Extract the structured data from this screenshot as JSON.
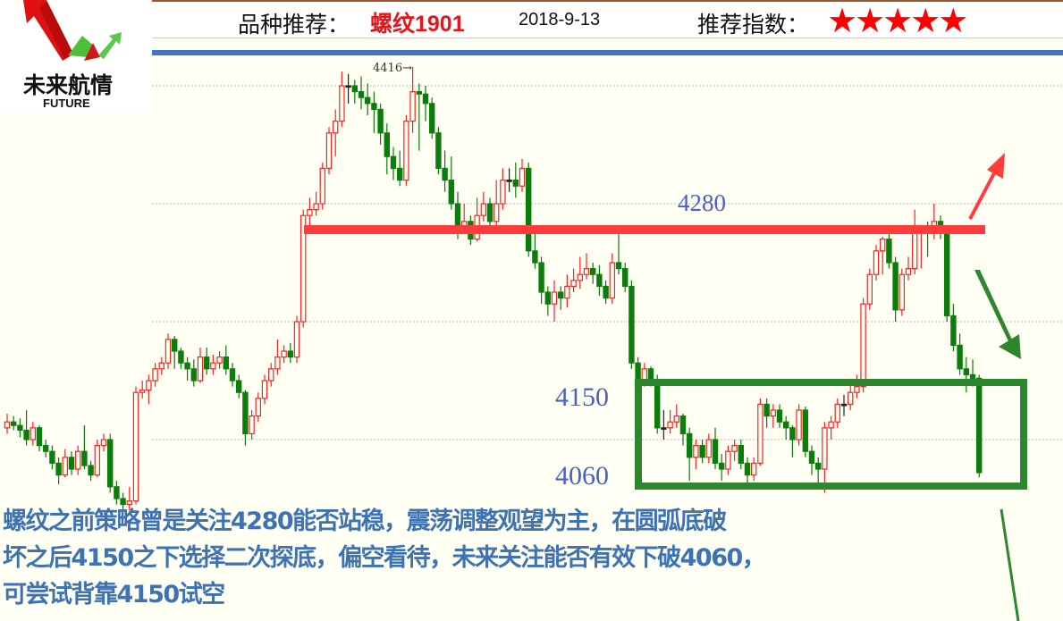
{
  "header": {
    "variety_label": "品种推荐：",
    "variety": "螺纹1901",
    "date": "2018-9-13",
    "rating_label": "推荐指数：",
    "rating_stars": 5,
    "stars_text": "★★★★★"
  },
  "logo": {
    "cn": "未来航情",
    "en": "FUTURE"
  },
  "colors": {
    "up": "#ff2020",
    "down": "#0a7d0a",
    "resistance": "#ff3b3b",
    "box": "#2e872e",
    "annotation": "#4a5fc8",
    "comment": "#3d72b4",
    "rule": "#4472c4"
  },
  "chart_data": {
    "type": "candlestick",
    "ylim": [
      4030,
      4430
    ],
    "grid": true,
    "gridlines": [
      4100,
      4200,
      4300,
      4400
    ],
    "high_marker": "4416→",
    "levels": [
      {
        "label": "4280",
        "value": 4280,
        "style": "red-line"
      },
      {
        "label": "4150",
        "value": 4150,
        "style": "box-top"
      },
      {
        "label": "4060",
        "value": 4060,
        "style": "box-bottom"
      }
    ],
    "candles": [
      [
        4110,
        4122,
        4105,
        4115
      ],
      [
        4115,
        4120,
        4108,
        4112
      ],
      [
        4112,
        4118,
        4102,
        4108
      ],
      [
        4108,
        4125,
        4095,
        4100
      ],
      [
        4100,
        4115,
        4095,
        4110
      ],
      [
        4110,
        4112,
        4090,
        4095
      ],
      [
        4095,
        4100,
        4085,
        4090
      ],
      [
        4090,
        4095,
        4075,
        4080
      ],
      [
        4080,
        4085,
        4062,
        4070
      ],
      [
        4070,
        4092,
        4068,
        4085
      ],
      [
        4085,
        4090,
        4070,
        4075
      ],
      [
        4075,
        4095,
        4070,
        4090
      ],
      [
        4090,
        4112,
        4075,
        4078
      ],
      [
        4078,
        4082,
        4065,
        4070
      ],
      [
        4070,
        4100,
        4068,
        4095
      ],
      [
        4095,
        4105,
        4090,
        4100
      ],
      [
        4100,
        4105,
        4055,
        4060
      ],
      [
        4060,
        4065,
        4045,
        4050
      ],
      [
        4050,
        4055,
        4035,
        4045
      ],
      [
        4045,
        4060,
        4040,
        4048
      ],
      [
        4048,
        4145,
        4045,
        4140
      ],
      [
        4140,
        4150,
        4135,
        4142
      ],
      [
        4142,
        4155,
        4130,
        4150
      ],
      [
        4150,
        4165,
        4145,
        4160
      ],
      [
        4160,
        4170,
        4155,
        4165
      ],
      [
        4165,
        4190,
        4160,
        4185
      ],
      [
        4185,
        4188,
        4160,
        4175
      ],
      [
        4175,
        4178,
        4160,
        4165
      ],
      [
        4165,
        4170,
        4150,
        4160
      ],
      [
        4160,
        4168,
        4145,
        4150
      ],
      [
        4150,
        4178,
        4148,
        4170
      ],
      [
        4170,
        4178,
        4155,
        4160
      ],
      [
        4160,
        4172,
        4155,
        4165
      ],
      [
        4165,
        4175,
        4160,
        4170
      ],
      [
        4170,
        4180,
        4155,
        4160
      ],
      [
        4160,
        4165,
        4145,
        4150
      ],
      [
        4150,
        4155,
        4135,
        4140
      ],
      [
        4140,
        4142,
        4095,
        4105
      ],
      [
        4105,
        4125,
        4100,
        4120
      ],
      [
        4120,
        4140,
        4115,
        4135
      ],
      [
        4135,
        4155,
        4130,
        4150
      ],
      [
        4150,
        4165,
        4145,
        4160
      ],
      [
        4160,
        4185,
        4155,
        4170
      ],
      [
        4170,
        4180,
        4165,
        4175
      ],
      [
        4175,
        4182,
        4165,
        4170
      ],
      [
        4170,
        4205,
        4165,
        4200
      ],
      [
        4200,
        4295,
        4195,
        4290
      ],
      [
        4290,
        4305,
        4280,
        4295
      ],
      [
        4295,
        4310,
        4290,
        4300
      ],
      [
        4300,
        4335,
        4295,
        4330
      ],
      [
        4330,
        4365,
        4325,
        4360
      ],
      [
        4360,
        4380,
        4340,
        4370
      ],
      [
        4370,
        4412,
        4365,
        4400
      ],
      [
        4400,
        4410,
        4385,
        4400
      ],
      [
        4400,
        4405,
        4385,
        4395
      ],
      [
        4395,
        4408,
        4380,
        4390
      ],
      [
        4390,
        4402,
        4375,
        4385
      ],
      [
        4385,
        4395,
        4360,
        4380
      ],
      [
        4380,
        4385,
        4350,
        4360
      ],
      [
        4360,
        4368,
        4325,
        4340
      ],
      [
        4340,
        4348,
        4320,
        4330
      ],
      [
        4330,
        4345,
        4315,
        4320
      ],
      [
        4320,
        4375,
        4315,
        4370
      ],
      [
        4370,
        4416,
        4360,
        4395
      ],
      [
        4395,
        4402,
        4345,
        4393
      ],
      [
        4393,
        4400,
        4370,
        4385
      ],
      [
        4385,
        4390,
        4355,
        4360
      ],
      [
        4360,
        4365,
        4325,
        4330
      ],
      [
        4330,
        4345,
        4310,
        4320
      ],
      [
        4320,
        4340,
        4295,
        4300
      ],
      [
        4300,
        4310,
        4270,
        4280
      ],
      [
        4280,
        4300,
        4275,
        4285
      ],
      [
        4285,
        4290,
        4265,
        4270
      ],
      [
        4270,
        4305,
        4268,
        4290
      ],
      [
        4290,
        4310,
        4285,
        4300
      ],
      [
        4300,
        4305,
        4275,
        4285
      ],
      [
        4285,
        4320,
        4280,
        4300
      ],
      [
        4300,
        4330,
        4295,
        4320
      ],
      [
        4320,
        4330,
        4310,
        4320
      ],
      [
        4320,
        4335,
        4305,
        4315
      ],
      [
        4315,
        4338,
        4310,
        4330
      ],
      [
        4330,
        4335,
        4255,
        4260
      ],
      [
        4260,
        4275,
        4245,
        4250
      ],
      [
        4250,
        4255,
        4215,
        4225
      ],
      [
        4225,
        4230,
        4205,
        4215
      ],
      [
        4215,
        4235,
        4200,
        4225
      ],
      [
        4225,
        4230,
        4210,
        4220
      ],
      [
        4220,
        4240,
        4212,
        4230
      ],
      [
        4230,
        4245,
        4225,
        4235
      ],
      [
        4235,
        4255,
        4228,
        4240
      ],
      [
        4240,
        4258,
        4236,
        4245
      ],
      [
        4245,
        4250,
        4232,
        4240
      ],
      [
        4240,
        4248,
        4222,
        4230
      ],
      [
        4230,
        4235,
        4215,
        4220
      ],
      [
        4220,
        4258,
        4215,
        4250
      ],
      [
        4250,
        4280,
        4240,
        4245
      ],
      [
        4245,
        4250,
        4225,
        4230
      ],
      [
        4230,
        4235,
        4160,
        4165
      ],
      [
        4165,
        4170,
        4145,
        4150
      ],
      [
        4150,
        4165,
        4145,
        4160
      ],
      [
        4160,
        4162,
        4145,
        4150
      ],
      [
        4150,
        4155,
        4105,
        4110
      ],
      [
        4110,
        4125,
        4100,
        4110
      ],
      [
        4110,
        4125,
        4105,
        4115
      ],
      [
        4115,
        4130,
        4110,
        4120
      ],
      [
        4120,
        4122,
        4095,
        4105
      ],
      [
        4105,
        4110,
        4065,
        4085
      ],
      [
        4085,
        4100,
        4075,
        4095
      ],
      [
        4095,
        4100,
        4080,
        4085
      ],
      [
        4085,
        4105,
        4080,
        4100
      ],
      [
        4100,
        4110,
        4075,
        4080
      ],
      [
        4080,
        4088,
        4065,
        4075
      ],
      [
        4075,
        4095,
        4070,
        4090
      ],
      [
        4090,
        4100,
        4082,
        4095
      ],
      [
        4095,
        4100,
        4075,
        4080
      ],
      [
        4080,
        4085,
        4060,
        4070
      ],
      [
        4070,
        4085,
        4065,
        4080
      ],
      [
        4080,
        4135,
        4078,
        4130
      ],
      [
        4130,
        4135,
        4110,
        4120
      ],
      [
        4120,
        4130,
        4110,
        4125
      ],
      [
        4125,
        4130,
        4110,
        4115
      ],
      [
        4115,
        4120,
        4100,
        4110
      ],
      [
        4110,
        4112,
        4085,
        4100
      ],
      [
        4100,
        4130,
        4095,
        4125
      ],
      [
        4125,
        4128,
        4085,
        4090
      ],
      [
        4090,
        4095,
        4070,
        4080
      ],
      [
        4080,
        4085,
        4060,
        4075
      ],
      [
        4075,
        4115,
        4055,
        4110
      ],
      [
        4110,
        4120,
        4100,
        4115
      ],
      [
        4115,
        4135,
        4110,
        4130
      ],
      [
        4130,
        4138,
        4120,
        4130
      ],
      [
        4130,
        4150,
        4125,
        4140
      ],
      [
        4140,
        4155,
        4135,
        4145
      ],
      [
        4145,
        4220,
        4140,
        4215
      ],
      [
        4215,
        4245,
        4210,
        4240
      ],
      [
        4240,
        4265,
        4235,
        4260
      ],
      [
        4260,
        4272,
        4240,
        4270
      ],
      [
        4270,
        4275,
        4245,
        4250
      ],
      [
        4250,
        4255,
        4200,
        4210
      ],
      [
        4210,
        4245,
        4205,
        4240
      ],
      [
        4240,
        4255,
        4235,
        4245
      ],
      [
        4245,
        4295,
        4240,
        4275
      ],
      [
        4275,
        4282,
        4245,
        4280
      ],
      [
        4280,
        4285,
        4255,
        4278
      ],
      [
        4278,
        4300,
        4270,
        4285
      ],
      [
        4285,
        4290,
        4270,
        4275
      ],
      [
        4275,
        4278,
        4200,
        4205
      ],
      [
        4205,
        4215,
        4175,
        4180
      ],
      [
        4180,
        4190,
        4155,
        4160
      ],
      [
        4160,
        4170,
        4140,
        4155
      ],
      [
        4155,
        4168,
        4145,
        4152
      ],
      [
        4152,
        4155,
        4068,
        4072
      ]
    ]
  },
  "comment": {
    "lines": [
      "螺纹之前策略曾是关注4280能否站稳，震荡调整观望为主，在圆弧底破",
      "坏之后4150之下选择二次探底，偏空看待，未来关注能否有效下破4060，",
      "可尝试背靠4150试空"
    ]
  }
}
